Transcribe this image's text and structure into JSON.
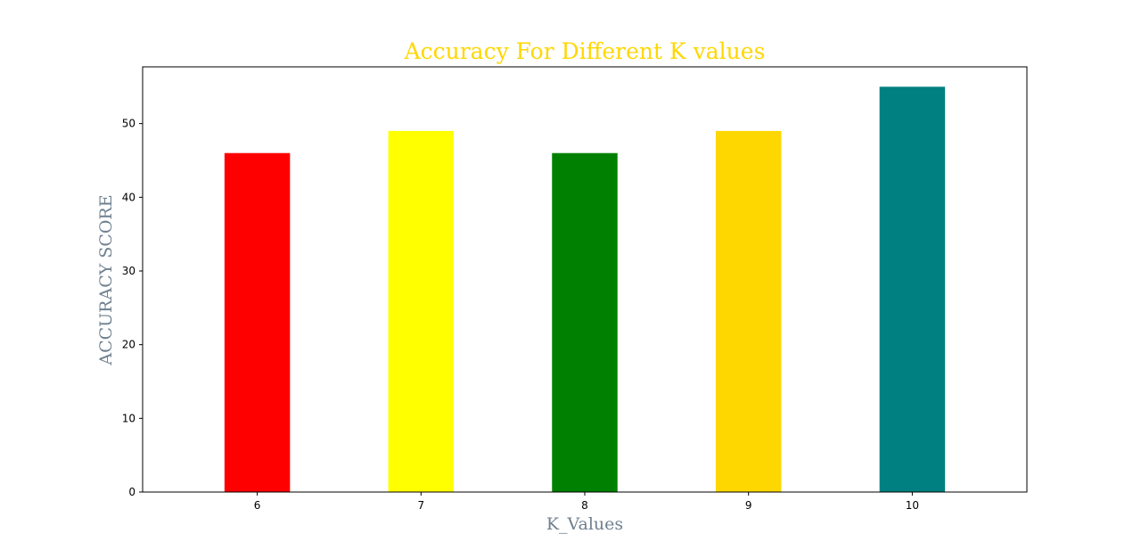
{
  "chart_data": {
    "type": "bar",
    "title": "Accuracy For Different K values",
    "xlabel": "K_Values",
    "ylabel": "ACCURACY SCORE",
    "categories": [
      "6",
      "7",
      "8",
      "9",
      "10"
    ],
    "values": [
      46,
      49,
      46,
      49,
      55
    ],
    "bar_colors": [
      "#ff0000",
      "#ffff00",
      "#008000",
      "#ffd700",
      "#008080"
    ],
    "ylim": [
      0,
      57.7
    ],
    "yticks": [
      0,
      10,
      20,
      30,
      40,
      50
    ],
    "grid": false,
    "legend": false
  },
  "colors": {
    "title": "#ffd700",
    "axis_label": "#708090",
    "axes": "#000000"
  }
}
